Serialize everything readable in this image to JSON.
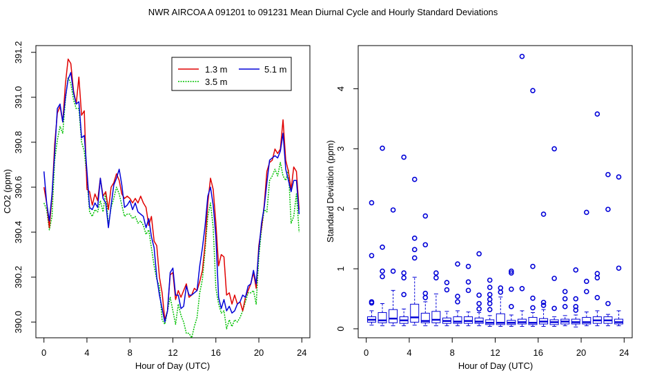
{
  "figure_title": "NWR   AIRCOA A   091201 to 091231   Mean Diurnal Cycle and Hourly Standard Deviations",
  "colors": {
    "red": "#e00000",
    "blue": "#0000d8",
    "green": "#00c000",
    "axis": "#000000"
  },
  "chart_data": [
    {
      "type": "line",
      "title": "",
      "xlabel": "Hour of Day (UTC)",
      "ylabel": "CO2 (ppm)",
      "xlim": [
        -0.75,
        24.75
      ],
      "ylim": [
        389.93,
        391.23
      ],
      "xticks": [
        0,
        4,
        8,
        12,
        16,
        20,
        24
      ],
      "yticks": [
        390.0,
        390.2,
        390.4,
        390.6,
        390.8,
        391.0,
        391.2
      ],
      "ytick_labels": [
        "390.0",
        "390.2",
        "390.4",
        "390.6",
        "390.8",
        "391.0",
        "391.2"
      ],
      "legend_position": "top-right",
      "x": [
        0,
        0.25,
        0.5,
        0.75,
        1,
        1.25,
        1.5,
        1.75,
        2,
        2.25,
        2.5,
        2.75,
        3,
        3.25,
        3.5,
        3.75,
        4,
        4.25,
        4.5,
        4.75,
        5,
        5.25,
        5.5,
        5.75,
        6,
        6.25,
        6.5,
        6.75,
        7,
        7.25,
        7.5,
        7.75,
        8,
        8.25,
        8.5,
        8.75,
        9,
        9.25,
        9.5,
        9.75,
        10,
        10.25,
        10.5,
        10.75,
        11,
        11.25,
        11.5,
        11.75,
        12,
        12.25,
        12.5,
        12.75,
        13,
        13.25,
        13.5,
        13.75,
        14,
        14.25,
        14.5,
        14.75,
        15,
        15.25,
        15.5,
        15.75,
        16,
        16.25,
        16.5,
        16.75,
        17,
        17.25,
        17.5,
        17.75,
        18,
        18.25,
        18.5,
        18.75,
        19,
        19.25,
        19.5,
        19.75,
        20,
        20.25,
        20.5,
        20.75,
        21,
        21.25,
        21.5,
        21.75,
        22,
        22.25,
        22.5,
        22.75,
        23,
        23.25,
        23.5,
        23.75
      ],
      "series": [
        {
          "name": "1.3 m",
          "color": "red",
          "values": [
            390.6,
            390.53,
            390.42,
            390.56,
            390.79,
            390.93,
            390.96,
            390.89,
            391.06,
            391.17,
            391.15,
            391.03,
            390.97,
            391.09,
            390.92,
            390.94,
            390.59,
            390.58,
            390.52,
            390.57,
            390.54,
            390.64,
            390.56,
            390.58,
            390.5,
            390.6,
            390.62,
            390.66,
            390.63,
            390.57,
            390.55,
            390.56,
            390.55,
            390.53,
            390.55,
            390.53,
            390.56,
            390.53,
            390.51,
            390.43,
            390.47,
            390.36,
            390.34,
            390.2,
            390.13,
            390.01,
            390.05,
            390.21,
            390.22,
            390.1,
            390.14,
            390.11,
            390.14,
            390.17,
            390.11,
            390.12,
            390.15,
            390.14,
            390.18,
            390.23,
            390.35,
            390.53,
            390.64,
            390.59,
            390.44,
            390.25,
            390.3,
            390.29,
            390.12,
            390.13,
            390.08,
            390.12,
            390.08,
            390.09,
            390.05,
            390.11,
            390.14,
            390.17,
            390.22,
            390.15,
            390.34,
            390.42,
            390.52,
            390.67,
            390.71,
            390.72,
            390.77,
            390.75,
            390.77,
            390.9,
            390.72,
            390.67,
            390.59,
            390.69,
            390.67,
            390.5
          ]
        },
        {
          "name": "3.5 m",
          "color": "green",
          "values": [
            390.53,
            390.5,
            390.41,
            390.47,
            390.72,
            390.81,
            390.87,
            390.84,
            390.99,
            391.09,
            391.06,
            390.99,
            390.95,
            390.95,
            390.8,
            390.76,
            390.64,
            390.49,
            390.47,
            390.5,
            390.49,
            390.54,
            390.49,
            390.58,
            390.43,
            390.51,
            390.55,
            390.6,
            390.57,
            390.52,
            390.47,
            390.48,
            390.48,
            390.46,
            390.47,
            390.44,
            390.45,
            390.43,
            390.39,
            390.41,
            390.33,
            390.25,
            390.19,
            390.16,
            390.01,
            389.99,
            390.05,
            390.11,
            390.05,
            389.99,
            390.08,
            390.03,
            390.0,
            389.95,
            389.95,
            389.93,
            389.98,
            390.02,
            390.13,
            390.19,
            390.32,
            390.47,
            390.53,
            390.42,
            390.15,
            390.08,
            390.04,
            390.05,
            389.97,
            390.01,
            389.98,
            390.01,
            390.0,
            390.02,
            390.05,
            390.09,
            390.13,
            390.13,
            390.14,
            390.08,
            390.29,
            390.41,
            390.5,
            390.49,
            390.63,
            390.65,
            390.68,
            390.65,
            390.71,
            390.65,
            390.63,
            390.68,
            390.44,
            390.47,
            390.57,
            390.4
          ]
        },
        {
          "name": "5.1 m",
          "color": "blue",
          "values": [
            390.67,
            390.53,
            390.45,
            390.57,
            390.75,
            390.95,
            390.97,
            390.89,
            391.0,
            391.08,
            391.11,
            391.02,
            390.97,
            390.98,
            390.82,
            390.83,
            390.67,
            390.51,
            390.5,
            390.53,
            390.51,
            390.64,
            390.55,
            390.53,
            390.42,
            390.52,
            390.61,
            390.64,
            390.68,
            390.61,
            390.51,
            390.52,
            390.54,
            390.5,
            390.53,
            390.49,
            390.48,
            390.47,
            390.42,
            390.46,
            390.38,
            390.33,
            390.2,
            390.12,
            390.06,
            390.0,
            390.05,
            390.22,
            390.24,
            390.12,
            390.12,
            390.06,
            390.07,
            390.16,
            390.12,
            390.12,
            390.13,
            390.14,
            390.25,
            390.33,
            390.43,
            390.56,
            390.6,
            390.52,
            390.38,
            390.11,
            390.06,
            390.1,
            390.05,
            390.07,
            390.04,
            390.05,
            390.08,
            390.09,
            390.12,
            390.11,
            390.16,
            390.17,
            390.23,
            390.17,
            390.32,
            390.44,
            390.51,
            390.62,
            390.72,
            390.73,
            390.74,
            390.73,
            390.76,
            390.84,
            390.68,
            390.63,
            390.58,
            390.63,
            390.63,
            390.48
          ]
        }
      ]
    },
    {
      "type": "boxplot",
      "title": "",
      "xlabel": "Hour of Day (UTC)",
      "ylabel": "Standard Deviation (ppm)",
      "xlim": [
        -0.75,
        24.75
      ],
      "ylim": [
        -0.15,
        4.72
      ],
      "xticks": [
        0,
        4,
        8,
        12,
        16,
        20,
        24
      ],
      "yticks": [
        0,
        1,
        2,
        3,
        4
      ],
      "color": "blue",
      "boxes": [
        {
          "x": 0.5,
          "q1": 0.11,
          "median": 0.15,
          "q3": 0.2,
          "whislo": 0.06,
          "whishi": 0.3,
          "outliers": [
            0.43,
            0.45,
            1.22,
            2.1
          ]
        },
        {
          "x": 1.5,
          "q1": 0.1,
          "median": 0.14,
          "q3": 0.27,
          "whislo": 0.05,
          "whishi": 0.42,
          "outliers": [
            0.87,
            0.96,
            1.36,
            3.01
          ]
        },
        {
          "x": 2.5,
          "q1": 0.1,
          "median": 0.17,
          "q3": 0.32,
          "whislo": 0.05,
          "whishi": 0.64,
          "outliers": [
            0.96,
            1.98
          ]
        },
        {
          "x": 3.5,
          "q1": 0.09,
          "median": 0.14,
          "q3": 0.2,
          "whislo": 0.05,
          "whishi": 0.33,
          "outliers": [
            0.57,
            0.85,
            0.93,
            2.86
          ]
        },
        {
          "x": 4.5,
          "q1": 0.11,
          "median": 0.19,
          "q3": 0.41,
          "whislo": 0.06,
          "whishi": 0.86,
          "outliers": [
            1.18,
            1.32,
            1.51,
            2.49
          ]
        },
        {
          "x": 5.5,
          "q1": 0.1,
          "median": 0.13,
          "q3": 0.26,
          "whislo": 0.05,
          "whishi": 0.45,
          "outliers": [
            0.52,
            0.59,
            1.4,
            1.88
          ]
        },
        {
          "x": 6.5,
          "q1": 0.1,
          "median": 0.15,
          "q3": 0.29,
          "whislo": 0.05,
          "whishi": 0.58,
          "outliers": [
            0.85,
            0.93
          ]
        },
        {
          "x": 7.5,
          "q1": 0.09,
          "median": 0.13,
          "q3": 0.18,
          "whislo": 0.05,
          "whishi": 0.29,
          "outliers": [
            0.65,
            0.77
          ]
        },
        {
          "x": 8.5,
          "q1": 0.09,
          "median": 0.12,
          "q3": 0.2,
          "whislo": 0.05,
          "whishi": 0.3,
          "outliers": [
            0.45,
            0.54,
            1.08
          ]
        },
        {
          "x": 9.5,
          "q1": 0.09,
          "median": 0.13,
          "q3": 0.2,
          "whislo": 0.05,
          "whishi": 0.28,
          "outliers": [
            0.64,
            0.78,
            1.04
          ]
        },
        {
          "x": 10.5,
          "q1": 0.09,
          "median": 0.12,
          "q3": 0.18,
          "whislo": 0.05,
          "whishi": 0.27,
          "outliers": [
            0.33,
            0.42,
            0.56,
            1.25
          ]
        },
        {
          "x": 11.5,
          "q1": 0.07,
          "median": 0.1,
          "q3": 0.15,
          "whislo": 0.04,
          "whishi": 0.22,
          "outliers": [
            0.32,
            0.42,
            0.49,
            0.57,
            0.69,
            0.81
          ]
        },
        {
          "x": 12.5,
          "q1": 0.07,
          "median": 0.1,
          "q3": 0.25,
          "whislo": 0.04,
          "whishi": 0.53,
          "outliers": [
            0.61,
            0.68
          ]
        },
        {
          "x": 13.5,
          "q1": 0.07,
          "median": 0.1,
          "q3": 0.14,
          "whislo": 0.04,
          "whishi": 0.23,
          "outliers": [
            0.37,
            0.66,
            0.93,
            0.96
          ]
        },
        {
          "x": 14.5,
          "q1": 0.08,
          "median": 0.11,
          "q3": 0.16,
          "whislo": 0.04,
          "whishi": 0.3,
          "outliers": [
            0.67,
            4.54
          ]
        },
        {
          "x": 15.5,
          "q1": 0.07,
          "median": 0.1,
          "q3": 0.19,
          "whislo": 0.04,
          "whishi": 0.27,
          "outliers": [
            0.35,
            0.51,
            1.04,
            3.97
          ]
        },
        {
          "x": 16.5,
          "q1": 0.08,
          "median": 0.12,
          "q3": 0.17,
          "whislo": 0.04,
          "whishi": 0.32,
          "outliers": [
            0.39,
            0.44,
            1.91
          ]
        },
        {
          "x": 17.5,
          "q1": 0.07,
          "median": 0.11,
          "q3": 0.15,
          "whislo": 0.04,
          "whishi": 0.2,
          "outliers": [
            0.34,
            0.84,
            3.0
          ]
        },
        {
          "x": 18.5,
          "q1": 0.08,
          "median": 0.12,
          "q3": 0.16,
          "whislo": 0.05,
          "whishi": 0.22,
          "outliers": [
            0.37,
            0.5,
            0.62
          ]
        },
        {
          "x": 19.5,
          "q1": 0.08,
          "median": 0.11,
          "q3": 0.16,
          "whislo": 0.03,
          "whishi": 0.23,
          "outliers": [
            0.31,
            0.37,
            0.5,
            0.98
          ]
        },
        {
          "x": 20.5,
          "q1": 0.08,
          "median": 0.11,
          "q3": 0.19,
          "whislo": 0.05,
          "whishi": 0.28,
          "outliers": [
            0.62,
            0.79,
            1.94
          ]
        },
        {
          "x": 21.5,
          "q1": 0.09,
          "median": 0.14,
          "q3": 0.2,
          "whislo": 0.05,
          "whishi": 0.3,
          "outliers": [
            0.52,
            0.85,
            0.92,
            3.58
          ]
        },
        {
          "x": 22.5,
          "q1": 0.09,
          "median": 0.14,
          "q3": 0.2,
          "whislo": 0.05,
          "whishi": 0.24,
          "outliers": [
            0.42,
            1.99,
            2.57
          ]
        },
        {
          "x": 23.5,
          "q1": 0.08,
          "median": 0.11,
          "q3": 0.16,
          "whislo": 0.05,
          "whishi": 0.3,
          "outliers": [
            1.01,
            2.53
          ]
        }
      ]
    }
  ]
}
